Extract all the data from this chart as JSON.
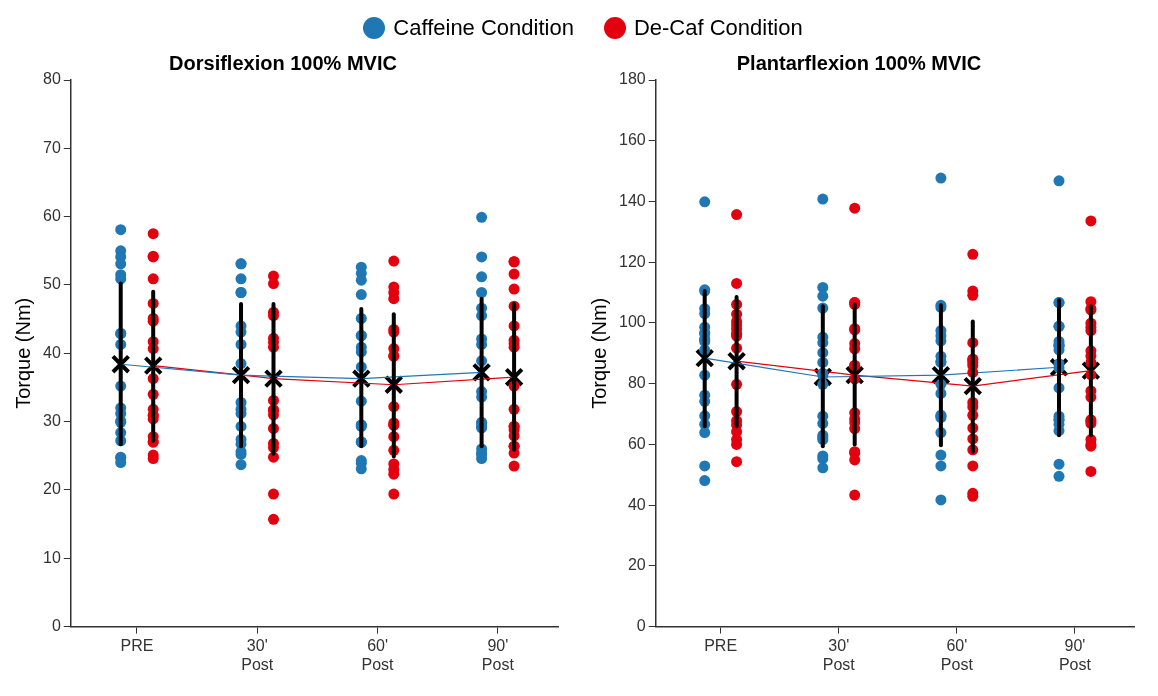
{
  "chart_data": [
    {
      "type": "scatter",
      "title": "Dorsiflexion 100% MVIC",
      "ylabel": "Torque (Nm)",
      "categories": [
        "PRE",
        "30' Post",
        "60' Post",
        "90' Post"
      ],
      "ylim": [
        0,
        80
      ],
      "yticks": [
        0,
        10,
        20,
        30,
        40,
        50,
        60,
        70,
        80
      ],
      "grid": false,
      "legend": "top",
      "marker": "circle",
      "series": [
        {
          "name": "Caffeine Condition",
          "color": "#1f77b4",
          "x": [
            "PRE",
            "PRE",
            "PRE",
            "PRE",
            "PRE",
            "PRE",
            "PRE",
            "PRE",
            "PRE",
            "PRE",
            "PRE",
            "PRE",
            "PRE",
            "PRE",
            "PRE",
            "PRE",
            "PRE",
            "PRE",
            "PRE",
            "30' Post",
            "30' Post",
            "30' Post",
            "30' Post",
            "30' Post",
            "30' Post",
            "30' Post",
            "30' Post",
            "30' Post",
            "30' Post",
            "30' Post",
            "30' Post",
            "30' Post",
            "30' Post",
            "30' Post",
            "30' Post",
            "30' Post",
            "30' Post",
            "60' Post",
            "60' Post",
            "60' Post",
            "60' Post",
            "60' Post",
            "60' Post",
            "60' Post",
            "60' Post",
            "60' Post",
            "60' Post",
            "60' Post",
            "60' Post",
            "60' Post",
            "60' Post",
            "60' Post",
            "60' Post",
            "60' Post",
            "60' Post",
            "60' Post",
            "60' Post",
            "90' Post",
            "90' Post",
            "90' Post",
            "90' Post",
            "90' Post",
            "90' Post",
            "90' Post",
            "90' Post",
            "90' Post",
            "90' Post",
            "90' Post",
            "90' Post",
            "90' Post",
            "90' Post",
            "90' Post",
            "90' Post",
            "90' Post",
            "90' Post",
            "90' Post"
          ],
          "values": [
            58.1,
            55.0,
            54.1,
            53.1,
            51.5,
            50.9,
            42.9,
            42.9,
            41.3,
            35.2,
            31.2,
            32.0,
            30.1,
            29.9,
            28.4,
            27.2,
            24.8,
            24.0,
            24.7,
            53.1,
            53.1,
            50.9,
            48.9,
            48.9,
            44.0,
            43.1,
            41.3,
            38.5,
            32.8,
            31.2,
            31.8,
            29.3,
            26.7,
            27.4,
            25.6,
            25.2,
            23.7,
            52.6,
            51.7,
            50.7,
            48.6,
            45.1,
            42.6,
            42.6,
            40.9,
            40.2,
            38.0,
            33.0,
            29.5,
            29.5,
            29.3,
            27.0,
            27.0,
            27.0,
            23.9,
            24.3,
            23.1,
            59.9,
            54.1,
            51.2,
            48.9,
            46.6,
            45.5,
            42.1,
            41.3,
            38.9,
            34.4,
            33.6,
            29.8,
            29.1,
            29.3,
            29.9,
            25.2,
            25.4,
            26.0,
            24.6
          ]
        },
        {
          "name": "De-Caf Condition",
          "color": "#e3000f",
          "x": [
            "PRE",
            "PRE",
            "PRE",
            "PRE",
            "PRE",
            "PRE",
            "PRE",
            "PRE",
            "PRE",
            "PRE",
            "PRE",
            "PRE",
            "PRE",
            "PRE",
            "PRE",
            "PRE",
            "PRE",
            "PRE",
            "PRE",
            "PRE",
            "30' Post",
            "30' Post",
            "30' Post",
            "30' Post",
            "30' Post",
            "30' Post",
            "30' Post",
            "30' Post",
            "30' Post",
            "30' Post",
            "30' Post",
            "30' Post",
            "30' Post",
            "30' Post",
            "30' Post",
            "30' Post",
            "30' Post",
            "60' Post",
            "60' Post",
            "60' Post",
            "60' Post",
            "60' Post",
            "60' Post",
            "60' Post",
            "60' Post",
            "60' Post",
            "60' Post",
            "60' Post",
            "60' Post",
            "60' Post",
            "60' Post",
            "60' Post",
            "60' Post",
            "60' Post",
            "60' Post",
            "60' Post",
            "90' Post",
            "90' Post",
            "90' Post",
            "90' Post",
            "90' Post",
            "90' Post",
            "90' Post",
            "90' Post",
            "90' Post",
            "90' Post",
            "90' Post",
            "90' Post",
            "90' Post",
            "90' Post",
            "90' Post",
            "90' Post",
            "90' Post",
            "90' Post",
            "90' Post"
          ],
          "values": [
            57.5,
            54.2,
            54.1,
            50.9,
            47.3,
            44.7,
            45.1,
            40.7,
            41.7,
            36.3,
            34.0,
            30.9,
            31.8,
            30.9,
            30.4,
            27.8,
            27.0,
            27.0,
            24.6,
            25.1,
            51.3,
            50.2,
            45.5,
            46.0,
            42.2,
            40.9,
            41.6,
            33.1,
            31.7,
            31.0,
            31.7,
            29.0,
            26.2,
            26.8,
            24.8,
            19.4,
            15.7,
            53.5,
            49.7,
            48.9,
            48.0,
            43.1,
            43.5,
            40.7,
            39.6,
            39.6,
            32.2,
            29.5,
            29.8,
            29.5,
            27.8,
            25.8,
            23.8,
            22.3,
            23.0,
            19.4,
            53.4,
            53.4,
            51.6,
            49.4,
            46.9,
            44.0,
            41.9,
            41.4,
            40.9,
            35.2,
            31.8,
            28.8,
            29.3,
            29.3,
            27.9,
            26.4,
            26.4,
            25.4,
            23.5
          ]
        },
        {
          "type": "line",
          "color": "#1f77b4",
          "marker": "none",
          "x": [
            "PRE",
            "30' Post",
            "60' Post",
            "90' Post"
          ],
          "values": [
            38.4,
            36.8,
            36.3,
            37.2
          ]
        },
        {
          "type": "line",
          "color": "#e3000f",
          "marker": "none",
          "x": [
            "PRE",
            "30' Post",
            "60' Post",
            "90' Post"
          ],
          "values": [
            38.2,
            36.3,
            35.4,
            36.5
          ]
        },
        {
          "color": "#000000",
          "marker": "cross",
          "x": [
            "PRE",
            "30' Post",
            "60' Post",
            "90' Post"
          ],
          "values": [
            38.4,
            36.8,
            36.3,
            37.2
          ],
          "errors": [
            [
              26.7,
              50.2
            ],
            [
              26.4,
              47.2
            ],
            [
              26.4,
              46.5
            ],
            [
              26.4,
              48.0
            ]
          ]
        },
        {
          "color": "#000000",
          "marker": "cross",
          "x": [
            "PRE",
            "30' Post",
            "60' Post",
            "90' Post"
          ],
          "values": [
            38.2,
            36.3,
            35.4,
            36.5
          ],
          "errors": [
            [
              27.2,
              49.0
            ],
            [
              25.3,
              47.2
            ],
            [
              24.9,
              45.7
            ],
            [
              25.9,
              47.2
            ]
          ]
        }
      ]
    },
    {
      "type": "scatter",
      "title": "Plantarflexion 100% MVIC",
      "ylabel": "Torque (Nm)",
      "categories": [
        "PRE",
        "30' Post",
        "60' Post",
        "90' Post"
      ],
      "ylim": [
        0,
        180
      ],
      "yticks": [
        0,
        20,
        40,
        60,
        80,
        100,
        120,
        140,
        160,
        180
      ],
      "grid": false,
      "marker": "circle",
      "series": [
        {
          "color": "#1f77b4",
          "x": [
            "PRE",
            "PRE",
            "PRE",
            "PRE",
            "PRE",
            "PRE",
            "PRE",
            "PRE",
            "PRE",
            "PRE",
            "PRE",
            "PRE",
            "PRE",
            "PRE",
            "PRE",
            "PRE",
            "PRE",
            "PRE",
            "PRE",
            "PRE",
            "30' Post",
            "30' Post",
            "30' Post",
            "30' Post",
            "30' Post",
            "30' Post",
            "30' Post",
            "30' Post",
            "30' Post",
            "30' Post",
            "30' Post",
            "30' Post",
            "30' Post",
            "30' Post",
            "30' Post",
            "30' Post",
            "30' Post",
            "30' Post",
            "30' Post",
            "60' Post",
            "60' Post",
            "60' Post",
            "60' Post",
            "60' Post",
            "60' Post",
            "60' Post",
            "60' Post",
            "60' Post",
            "60' Post",
            "60' Post",
            "60' Post",
            "60' Post",
            "60' Post",
            "60' Post",
            "60' Post",
            "60' Post",
            "60' Post",
            "90' Post",
            "90' Post",
            "90' Post",
            "90' Post",
            "90' Post",
            "90' Post",
            "90' Post",
            "90' Post",
            "90' Post",
            "90' Post",
            "90' Post",
            "90' Post",
            "90' Post",
            "90' Post",
            "90' Post",
            "90' Post",
            "90' Post",
            "90' Post",
            "90' Post",
            "90' Post"
          ],
          "values": [
            139.9,
            110.9,
            110.5,
            104.7,
            103.1,
            98.6,
            96.8,
            96.5,
            94.7,
            93.9,
            94.5,
            91.1,
            82.8,
            76.2,
            74.2,
            69.4,
            66.6,
            63.9,
            52.9,
            48.1,
            140.8,
            111.7,
            108.8,
            104.9,
            95.3,
            93.5,
            90.2,
            87.0,
            82.8,
            83.4,
            79.8,
            69.3,
            66.9,
            63.0,
            61.6,
            62.3,
            55.3,
            56.2,
            52.3,
            147.7,
            105.1,
            105.8,
            95.8,
            97.5,
            94.1,
            87.0,
            89.0,
            87.3,
            79.8,
            76.8,
            69.3,
            68.8,
            69.6,
            63.9,
            56.5,
            52.9,
            41.7,
            146.8,
            106.7,
            106.7,
            98.9,
            98.9,
            92.7,
            93.9,
            91.1,
            92.3,
            92.7,
            85.2,
            86.6,
            78.6,
            68.1,
            69.3,
            68.1,
            66.6,
            64.5,
            53.5,
            49.5
          ]
        },
        {
          "color": "#e3000f",
          "x": [
            "PRE",
            "PRE",
            "PRE",
            "PRE",
            "PRE",
            "PRE",
            "PRE",
            "PRE",
            "PRE",
            "PRE",
            "PRE",
            "PRE",
            "PRE",
            "PRE",
            "PRE",
            "PRE",
            "PRE",
            "PRE",
            "PRE",
            "30' Post",
            "30' Post",
            "30' Post",
            "30' Post",
            "30' Post",
            "30' Post",
            "30' Post",
            "30' Post",
            "30' Post",
            "30' Post",
            "30' Post",
            "30' Post",
            "30' Post",
            "30' Post",
            "30' Post",
            "30' Post",
            "30' Post",
            "30' Post",
            "30' Post",
            "60' Post",
            "60' Post",
            "60' Post",
            "60' Post",
            "60' Post",
            "60' Post",
            "60' Post",
            "60' Post",
            "60' Post",
            "60' Post",
            "60' Post",
            "60' Post",
            "60' Post",
            "60' Post",
            "60' Post",
            "60' Post",
            "60' Post",
            "60' Post",
            "90' Post",
            "90' Post",
            "90' Post",
            "90' Post",
            "90' Post",
            "90' Post",
            "90' Post",
            "90' Post",
            "90' Post",
            "90' Post",
            "90' Post",
            "90' Post",
            "90' Post",
            "90' Post",
            "90' Post",
            "90' Post",
            "90' Post",
            "90' Post",
            "90' Post",
            "90' Post"
          ],
          "values": [
            135.7,
            113.0,
            106.1,
            102.9,
            99.3,
            100.5,
            98.0,
            96.5,
            95.7,
            96.3,
            91.7,
            79.8,
            70.8,
            67.8,
            66.4,
            64.2,
            60.0,
            61.6,
            54.3,
            137.8,
            106.7,
            106.1,
            106.7,
            97.7,
            98.1,
            91.5,
            93.2,
            86.0,
            86.0,
            81.6,
            68.4,
            70.4,
            67.2,
            65.2,
            57.6,
            57.1,
            54.9,
            43.3,
            122.6,
            110.5,
            109.1,
            93.5,
            86.0,
            88.1,
            87.9,
            87.0,
            83.7,
            73.8,
            72.4,
            69.6,
            65.4,
            61.8,
            58.2,
            52.9,
            42.9,
            43.9,
            133.6,
            107.0,
            104.7,
            104.3,
            99.9,
            98.6,
            97.5,
            89.1,
            90.8,
            87.0,
            83.0,
            77.6,
            75.6,
            66.9,
            68.1,
            67.6,
            59.4,
            60.0,
            61.6,
            51.1
          ]
        },
        {
          "type": "line",
          "color": "#1f77b4",
          "marker": "none",
          "x": [
            "PRE",
            "30' Post",
            "60' Post",
            "90' Post"
          ],
          "values": [
            88.4,
            82.2,
            82.8,
            85.4
          ]
        },
        {
          "type": "line",
          "color": "#e3000f",
          "marker": "none",
          "x": [
            "PRE",
            "30' Post",
            "60' Post",
            "90' Post"
          ],
          "values": [
            87.4,
            82.8,
            79.2,
            84.3
          ]
        },
        {
          "color": "#000000",
          "marker": "cross",
          "x": [
            "PRE",
            "30' Post",
            "60' Post",
            "90' Post"
          ],
          "values": [
            88.4,
            82.2,
            82.8,
            85.4
          ],
          "errors": [
            [
              66.0,
              110.5
            ],
            [
              59.4,
              105.5
            ],
            [
              59.7,
              105.8
            ],
            [
              63.0,
              107.5
            ]
          ]
        },
        {
          "color": "#000000",
          "marker": "cross",
          "x": [
            "PRE",
            "30' Post",
            "60' Post",
            "90' Post"
          ],
          "values": [
            87.4,
            82.8,
            79.2,
            84.3
          ],
          "errors": [
            [
              66.0,
              108.5
            ],
            [
              60.0,
              106.1
            ],
            [
              57.6,
              100.5
            ],
            [
              63.0,
              105.5
            ]
          ]
        }
      ]
    }
  ]
}
